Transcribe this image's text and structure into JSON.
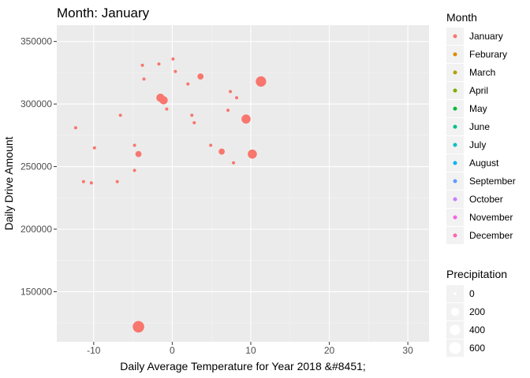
{
  "chart_data": {
    "type": "scatter",
    "title": "Month: January",
    "xlabel": "Daily Average Temperature for Year 2018 &#8451;",
    "ylabel": "Daily Drive Amount",
    "xlim": [
      -14.7,
      32.7
    ],
    "ylim": [
      110000,
      363000
    ],
    "xticks": [
      -10,
      0,
      10,
      20,
      30
    ],
    "yticks": [
      150000,
      200000,
      250000,
      300000,
      350000
    ],
    "xtick_labels": [
      "-10",
      "0",
      "10",
      "20",
      "30"
    ],
    "ytick_labels": [
      "150000",
      "200000",
      "250000",
      "300000",
      "350000"
    ],
    "grid": true,
    "series": [
      {
        "name": "January",
        "color": "#F8766D",
        "points": [
          {
            "x": -12.3,
            "y": 281000,
            "precip": 0
          },
          {
            "x": -11.3,
            "y": 238000,
            "precip": 0
          },
          {
            "x": -10.3,
            "y": 237000,
            "precip": 0
          },
          {
            "x": -9.9,
            "y": 265000,
            "precip": 0
          },
          {
            "x": -7.0,
            "y": 238000,
            "precip": 0
          },
          {
            "x": -6.6,
            "y": 291000,
            "precip": 0
          },
          {
            "x": -4.8,
            "y": 267000,
            "precip": 0
          },
          {
            "x": -4.8,
            "y": 247000,
            "precip": 0
          },
          {
            "x": -4.3,
            "y": 260000,
            "precip": 50
          },
          {
            "x": -3.8,
            "y": 331000,
            "precip": 0
          },
          {
            "x": -3.6,
            "y": 320000,
            "precip": 0
          },
          {
            "x": -1.7,
            "y": 332000,
            "precip": 0
          },
          {
            "x": -1.5,
            "y": 305000,
            "precip": 150
          },
          {
            "x": -1.1,
            "y": 303000,
            "precip": 150
          },
          {
            "x": -0.7,
            "y": 296000,
            "precip": 0
          },
          {
            "x": 0.1,
            "y": 336000,
            "precip": 0
          },
          {
            "x": 0.4,
            "y": 326000,
            "precip": 0
          },
          {
            "x": 2.0,
            "y": 316000,
            "precip": 0
          },
          {
            "x": 2.5,
            "y": 291000,
            "precip": 0
          },
          {
            "x": 2.8,
            "y": 285000,
            "precip": 0
          },
          {
            "x": 3.6,
            "y": 322000,
            "precip": 50
          },
          {
            "x": 4.9,
            "y": 267000,
            "precip": 0
          },
          {
            "x": 6.3,
            "y": 262000,
            "precip": 50
          },
          {
            "x": 7.1,
            "y": 295000,
            "precip": 0
          },
          {
            "x": 7.4,
            "y": 310000,
            "precip": 0
          },
          {
            "x": 7.8,
            "y": 253000,
            "precip": 0
          },
          {
            "x": 8.2,
            "y": 305000,
            "precip": 0
          },
          {
            "x": 9.4,
            "y": 288000,
            "precip": 200
          },
          {
            "x": 10.2,
            "y": 260000,
            "precip": 200
          },
          {
            "x": 11.3,
            "y": 318000,
            "precip": 300
          },
          {
            "x": -4.3,
            "y": 122000,
            "precip": 400
          }
        ]
      }
    ],
    "legend": {
      "position": "right",
      "color_title": "Month",
      "color_items": [
        {
          "label": "January",
          "color": "#F8766D"
        },
        {
          "label": "Feburary",
          "color": "#DE8C00"
        },
        {
          "label": "March",
          "color": "#B79F00"
        },
        {
          "label": "April",
          "color": "#7CAE00"
        },
        {
          "label": "May",
          "color": "#00BA38"
        },
        {
          "label": "June",
          "color": "#00C08B"
        },
        {
          "label": "July",
          "color": "#00BFC4"
        },
        {
          "label": "August",
          "color": "#00B4F0"
        },
        {
          "label": "September",
          "color": "#619CFF"
        },
        {
          "label": "October",
          "color": "#C77CFF"
        },
        {
          "label": "November",
          "color": "#F564E3"
        },
        {
          "label": "December",
          "color": "#FF64B0"
        }
      ],
      "size_title": "Precipitation",
      "size_items": [
        {
          "label": "0",
          "value": 0
        },
        {
          "label": "200",
          "value": 200
        },
        {
          "label": "400",
          "value": 400
        },
        {
          "label": "600",
          "value": 600
        }
      ]
    }
  }
}
